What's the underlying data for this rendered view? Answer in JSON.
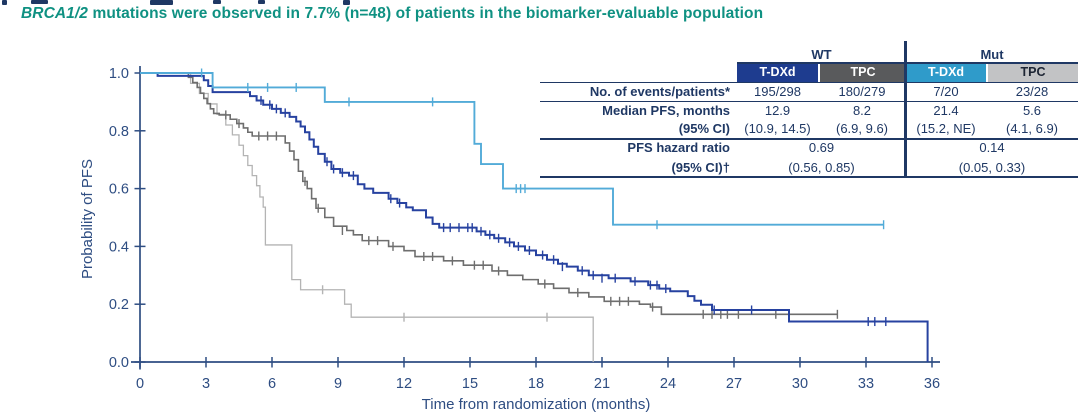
{
  "subtitle": {
    "gene": "BRCA1/2",
    "rest": " mutations were observed in 7.7% (n=48) of patients in the biomarker-evaluable population"
  },
  "table": {
    "group_headers": [
      "WT",
      "Mut"
    ],
    "column_headers": [
      "T-DXd",
      "TPC",
      "T-DXd",
      "TPC"
    ],
    "rows": {
      "events": {
        "label": "No. of events/patients*",
        "values": [
          "195/298",
          "180/279",
          "7/20",
          "23/28"
        ]
      },
      "median": {
        "label": "Median PFS, months",
        "label2": "(95% CI)",
        "values": [
          "12.9",
          "8.2",
          "21.4",
          "5.6"
        ],
        "ci": [
          "(10.9, 14.5)",
          "(6.9, 9.6)",
          "(15.2, NE)",
          "(4.1, 6.9)"
        ]
      },
      "hazard": {
        "label": "PFS hazard ratio",
        "label2": "(95% CI)†",
        "values": [
          "0.69",
          "0.14"
        ],
        "ci": [
          "(0.56, 0.85)",
          "(0.05, 0.33)"
        ]
      }
    }
  },
  "colors": {
    "teal_title": "#0f9182",
    "navy_text": "#1f3864",
    "axis_text": "#2e4d82",
    "header_navy": "#1e3c8f",
    "header_darkgray": "#595a5c",
    "header_lightblue": "#2f9bca",
    "header_lightgray": "#c2c3c5"
  },
  "chart_data": {
    "type": "line",
    "kind": "kaplan-meier-step",
    "xlabel": "Time from randomization (months)",
    "ylabel": "Probability of PFS",
    "xlim": [
      0,
      36
    ],
    "ylim": [
      0.0,
      1.0
    ],
    "xticks": [
      0,
      3,
      6,
      9,
      12,
      15,
      18,
      21,
      24,
      27,
      30,
      33,
      36
    ],
    "yticks": [
      0.0,
      0.2,
      0.4,
      0.6,
      0.8,
      1.0
    ],
    "ytick_labels": [
      "0.0",
      "0.2",
      "0.4",
      "0.6",
      "0.8",
      "1.0"
    ],
    "grid": false,
    "legend": "none (identified by table header colors)",
    "series": [
      {
        "name": "Mut TPC",
        "color": "#b4b4b4",
        "width": 1.3,
        "steps": [
          [
            0,
            1.0
          ],
          [
            2.3,
            0.964
          ],
          [
            2.7,
            0.929
          ],
          [
            3.1,
            0.893
          ],
          [
            3.5,
            0.857
          ],
          [
            3.9,
            0.82
          ],
          [
            4.2,
            0.786
          ],
          [
            4.5,
            0.75
          ],
          [
            4.7,
            0.714
          ],
          [
            4.9,
            0.68
          ],
          [
            5.1,
            0.645
          ],
          [
            5.3,
            0.61
          ],
          [
            5.45,
            0.571
          ],
          [
            5.6,
            0.536
          ],
          [
            5.7,
            0.405
          ],
          [
            6.9,
            0.285
          ],
          [
            7.3,
            0.25
          ],
          [
            9.3,
            0.2
          ],
          [
            9.6,
            0.155
          ]
        ],
        "end": 20.6,
        "end_drop": 0.0,
        "censors": [
          [
            8.3,
            0.25
          ],
          [
            12.0,
            0.155
          ],
          [
            18.5,
            0.155
          ]
        ]
      },
      {
        "name": "WT TPC",
        "color": "#6e6e6e",
        "width": 1.6,
        "steps": [
          [
            0,
            1.0
          ],
          [
            2.2,
            0.985
          ],
          [
            2.4,
            0.967
          ],
          [
            2.6,
            0.95
          ],
          [
            2.75,
            0.93
          ],
          [
            2.9,
            0.912
          ],
          [
            3.05,
            0.894
          ],
          [
            3.2,
            0.876
          ],
          [
            3.35,
            0.86
          ],
          [
            3.6,
            0.855
          ],
          [
            4.1,
            0.84
          ],
          [
            4.4,
            0.825
          ],
          [
            4.7,
            0.81
          ],
          [
            4.9,
            0.795
          ],
          [
            5.1,
            0.782
          ],
          [
            6.6,
            0.758
          ],
          [
            6.8,
            0.73
          ],
          [
            7.0,
            0.7
          ],
          [
            7.2,
            0.66
          ],
          [
            7.4,
            0.625
          ],
          [
            7.6,
            0.6
          ],
          [
            7.8,
            0.565
          ],
          [
            8.0,
            0.532
          ],
          [
            8.4,
            0.5
          ],
          [
            8.8,
            0.47
          ],
          [
            9.4,
            0.455
          ],
          [
            9.7,
            0.44
          ],
          [
            10.1,
            0.42
          ],
          [
            11.3,
            0.4
          ],
          [
            12.0,
            0.385
          ],
          [
            12.5,
            0.365
          ],
          [
            13.8,
            0.35
          ],
          [
            14.7,
            0.335
          ],
          [
            16.0,
            0.315
          ],
          [
            16.7,
            0.3
          ],
          [
            17.4,
            0.285
          ],
          [
            18.1,
            0.27
          ],
          [
            18.8,
            0.255
          ],
          [
            19.5,
            0.24
          ],
          [
            20.4,
            0.225
          ],
          [
            21.1,
            0.21
          ],
          [
            22.7,
            0.2
          ],
          [
            23.2,
            0.19
          ],
          [
            23.7,
            0.165
          ]
        ],
        "end": 31.7,
        "end_drop": null,
        "censors": [
          [
            3.9,
            0.855
          ],
          [
            4.5,
            0.825
          ],
          [
            5.4,
            0.782
          ],
          [
            5.8,
            0.782
          ],
          [
            6.2,
            0.782
          ],
          [
            7.5,
            0.625
          ],
          [
            8.1,
            0.532
          ],
          [
            9.2,
            0.455
          ],
          [
            10.4,
            0.42
          ],
          [
            10.8,
            0.42
          ],
          [
            11.5,
            0.4
          ],
          [
            12.9,
            0.365
          ],
          [
            13.3,
            0.365
          ],
          [
            14.2,
            0.35
          ],
          [
            15.2,
            0.335
          ],
          [
            15.6,
            0.335
          ],
          [
            16.3,
            0.315
          ],
          [
            18.4,
            0.27
          ],
          [
            19.9,
            0.24
          ],
          [
            21.4,
            0.21
          ],
          [
            21.8,
            0.21
          ],
          [
            22.2,
            0.21
          ],
          [
            23.3,
            0.19
          ],
          [
            25.6,
            0.165
          ],
          [
            26.0,
            0.165
          ],
          [
            26.4,
            0.165
          ],
          [
            26.7,
            0.165
          ],
          [
            27.2,
            0.165
          ],
          [
            28.9,
            0.165
          ],
          [
            31.7,
            0.165
          ]
        ]
      },
      {
        "name": "WT T-DXd",
        "color": "#2742a0",
        "width": 2.0,
        "steps": [
          [
            0,
            1.0
          ],
          [
            0.8,
            0.99
          ],
          [
            2.9,
            0.975
          ],
          [
            3.1,
            0.955
          ],
          [
            3.3,
            0.934
          ],
          [
            5.0,
            0.92
          ],
          [
            5.3,
            0.905
          ],
          [
            5.6,
            0.89
          ],
          [
            6.0,
            0.876
          ],
          [
            6.4,
            0.862
          ],
          [
            6.8,
            0.848
          ],
          [
            7.1,
            0.832
          ],
          [
            7.3,
            0.815
          ],
          [
            7.5,
            0.795
          ],
          [
            7.7,
            0.77
          ],
          [
            7.9,
            0.745
          ],
          [
            8.1,
            0.72
          ],
          [
            8.4,
            0.693
          ],
          [
            8.7,
            0.668
          ],
          [
            9.1,
            0.655
          ],
          [
            9.5,
            0.645
          ],
          [
            9.9,
            0.615
          ],
          [
            10.2,
            0.6
          ],
          [
            10.6,
            0.585
          ],
          [
            11.3,
            0.565
          ],
          [
            11.7,
            0.55
          ],
          [
            12.1,
            0.535
          ],
          [
            12.4,
            0.525
          ],
          [
            13.0,
            0.5
          ],
          [
            13.3,
            0.478
          ],
          [
            13.6,
            0.465
          ],
          [
            15.3,
            0.452
          ],
          [
            15.7,
            0.44
          ],
          [
            16.1,
            0.428
          ],
          [
            16.6,
            0.414
          ],
          [
            17.0,
            0.4
          ],
          [
            17.5,
            0.386
          ],
          [
            18.0,
            0.37
          ],
          [
            18.5,
            0.354
          ],
          [
            19.0,
            0.34
          ],
          [
            19.4,
            0.33
          ],
          [
            19.9,
            0.316
          ],
          [
            20.4,
            0.3
          ],
          [
            21.3,
            0.29
          ],
          [
            22.3,
            0.279
          ],
          [
            23.1,
            0.266
          ],
          [
            23.6,
            0.254
          ],
          [
            24.1,
            0.245
          ],
          [
            24.9,
            0.228
          ],
          [
            25.2,
            0.212
          ],
          [
            25.5,
            0.198
          ],
          [
            26.0,
            0.18
          ],
          [
            29.5,
            0.14
          ]
        ],
        "end": 35.8,
        "end_drop": 0.0,
        "censors": [
          [
            5.5,
            0.905
          ],
          [
            5.9,
            0.89
          ],
          [
            6.2,
            0.876
          ],
          [
            6.6,
            0.862
          ],
          [
            8.5,
            0.693
          ],
          [
            8.8,
            0.668
          ],
          [
            9.2,
            0.655
          ],
          [
            9.7,
            0.645
          ],
          [
            11.4,
            0.565
          ],
          [
            11.8,
            0.55
          ],
          [
            13.8,
            0.465
          ],
          [
            14.1,
            0.465
          ],
          [
            14.5,
            0.465
          ],
          [
            14.9,
            0.465
          ],
          [
            15.1,
            0.465
          ],
          [
            15.5,
            0.452
          ],
          [
            15.9,
            0.44
          ],
          [
            16.3,
            0.428
          ],
          [
            16.8,
            0.414
          ],
          [
            17.2,
            0.4
          ],
          [
            17.7,
            0.386
          ],
          [
            18.3,
            0.37
          ],
          [
            18.8,
            0.354
          ],
          [
            19.2,
            0.33
          ],
          [
            20.1,
            0.316
          ],
          [
            20.6,
            0.3
          ],
          [
            21.0,
            0.29
          ],
          [
            21.6,
            0.29
          ],
          [
            22.5,
            0.279
          ],
          [
            23.2,
            0.266
          ],
          [
            23.5,
            0.266
          ],
          [
            23.9,
            0.254
          ],
          [
            26.1,
            0.18
          ],
          [
            27.8,
            0.18
          ],
          [
            33.1,
            0.14
          ],
          [
            33.4,
            0.14
          ],
          [
            33.9,
            0.14
          ]
        ]
      },
      {
        "name": "Mut T-DXd",
        "color": "#52abd8",
        "width": 1.9,
        "steps": [
          [
            0,
            1.0
          ],
          [
            3.3,
            0.95
          ],
          [
            8.4,
            0.9
          ],
          [
            15.2,
            0.755
          ],
          [
            15.5,
            0.685
          ],
          [
            16.5,
            0.6
          ],
          [
            21.5,
            0.475
          ]
        ],
        "end": 33.8,
        "end_drop": null,
        "censors": [
          [
            2.8,
            1.0
          ],
          [
            4.9,
            0.95
          ],
          [
            5.8,
            0.95
          ],
          [
            7.1,
            0.95
          ],
          [
            9.5,
            0.9
          ],
          [
            13.3,
            0.9
          ],
          [
            17.1,
            0.6
          ],
          [
            17.3,
            0.6
          ],
          [
            17.5,
            0.6
          ],
          [
            23.5,
            0.475
          ],
          [
            33.8,
            0.475
          ]
        ]
      }
    ]
  }
}
